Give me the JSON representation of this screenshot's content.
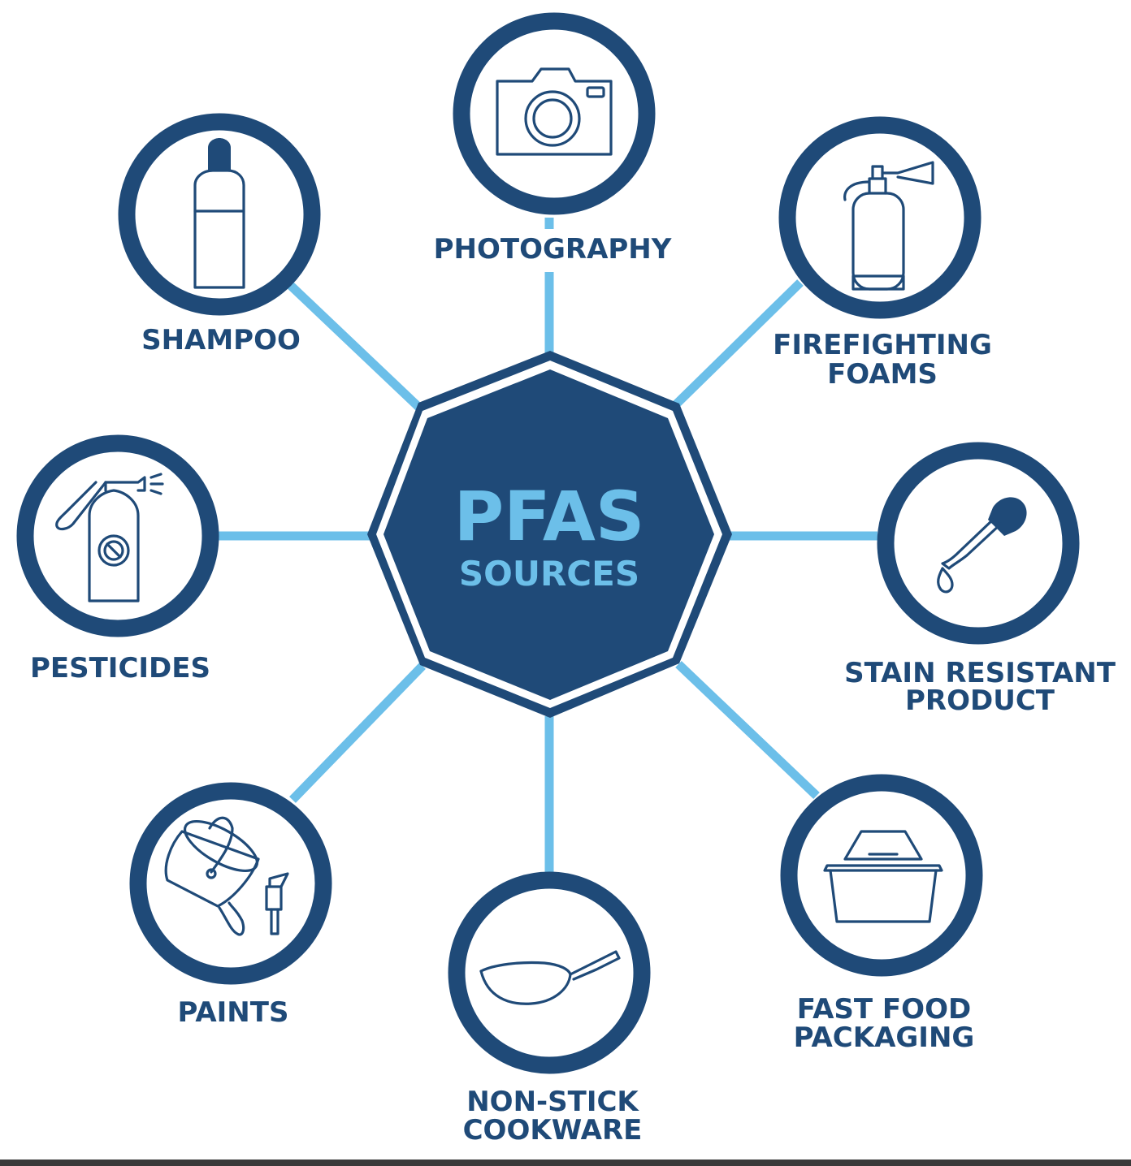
{
  "center": {
    "title": "PFAS",
    "subtitle": "SOURCES"
  },
  "colors": {
    "navy": "#1f4a78",
    "light_blue": "#6cbfe9",
    "background": "#ffffff"
  },
  "sources": [
    {
      "id": "photography",
      "label_lines": [
        "PHOTOGRAPHY"
      ],
      "icon": "camera-icon"
    },
    {
      "id": "firefighting-foams",
      "label_lines": [
        "FIREFIGHTING",
        "FOAMS"
      ],
      "icon": "fire-extinguisher-icon"
    },
    {
      "id": "stain-resistant-product",
      "label_lines": [
        "STAIN RESISTANT",
        "PRODUCT"
      ],
      "icon": "dropper-icon"
    },
    {
      "id": "fast-food-packaging",
      "label_lines": [
        "FAST FOOD",
        "PACKAGING"
      ],
      "icon": "takeout-box-icon"
    },
    {
      "id": "non-stick-cookware",
      "label_lines": [
        "NON-STICK",
        "COOKWARE"
      ],
      "icon": "frying-pan-icon"
    },
    {
      "id": "paints",
      "label_lines": [
        "PAINTS"
      ],
      "icon": "paint-bucket-icon"
    },
    {
      "id": "pesticides",
      "label_lines": [
        "PESTICIDES"
      ],
      "icon": "spray-bottle-icon"
    },
    {
      "id": "shampoo",
      "label_lines": [
        "SHAMPOO"
      ],
      "icon": "shampoo-bottle-icon"
    }
  ]
}
